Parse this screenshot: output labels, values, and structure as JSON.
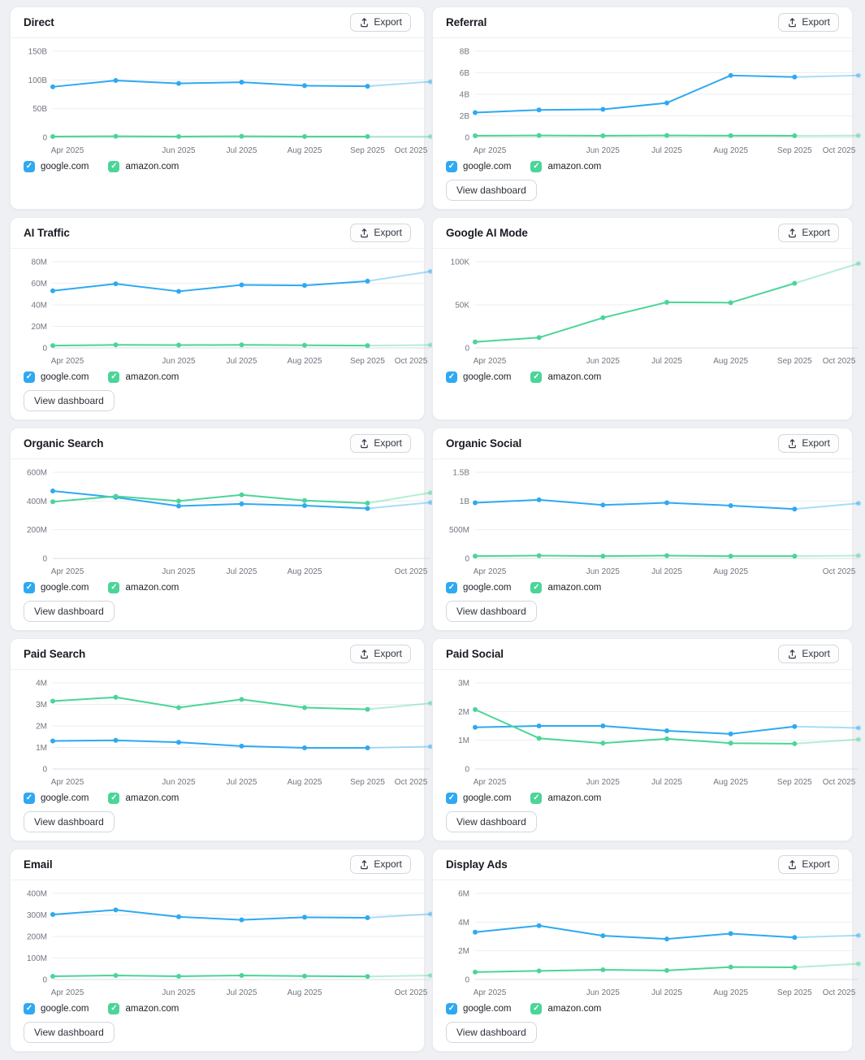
{
  "labels": {
    "export": "Export",
    "view_dashboard": "View dashboard"
  },
  "legend": {
    "items": [
      {
        "label": "google.com",
        "color": "#2ea9f2",
        "checked": true
      },
      {
        "label": "amazon.com",
        "color": "#4bd598",
        "checked": true
      }
    ]
  },
  "colors": {
    "google": "#2ea9f2",
    "amazon": "#4bd598",
    "grid": "#eceef1",
    "axis_zero": "#dadde2",
    "tick_text": "#71767f",
    "estimated_opacity": 0.4
  },
  "cards": [
    {
      "title": "Direct",
      "view_dashboard": false
    },
    {
      "title": "Referral",
      "view_dashboard": true
    },
    {
      "title": "AI Traffic",
      "view_dashboard": true
    },
    {
      "title": "Google AI Mode",
      "view_dashboard": false
    },
    {
      "title": "Organic Search",
      "view_dashboard": true
    },
    {
      "title": "Organic Social",
      "view_dashboard": true
    },
    {
      "title": "Paid Search",
      "view_dashboard": true
    },
    {
      "title": "Paid Social",
      "view_dashboard": true
    },
    {
      "title": "Email",
      "view_dashboard": true
    },
    {
      "title": "Display Ads",
      "view_dashboard": true
    }
  ],
  "chart_data": [
    {
      "type": "line",
      "title": "Direct",
      "unit": "B",
      "ylim": [
        0,
        150
      ],
      "y_ticks": [
        {
          "value": 150,
          "label": "150B"
        },
        {
          "value": 100,
          "label": "100B"
        },
        {
          "value": 50,
          "label": "50B"
        },
        {
          "value": 0,
          "label": "0"
        }
      ],
      "x_tick_labels": [
        {
          "point": 0,
          "label": "Apr 2025"
        },
        {
          "point": 2,
          "label": "Jun 2025"
        },
        {
          "point": 3,
          "label": "Jul 2025"
        },
        {
          "point": 4,
          "label": "Aug 2025"
        },
        {
          "point": 5,
          "label": "Sep 2025"
        },
        {
          "point": 6,
          "label": "Oct 2025"
        }
      ],
      "last_segment_estimated": true,
      "series": [
        {
          "name": "google.com",
          "values": [
            88,
            99,
            94,
            96,
            90,
            89,
            97
          ]
        },
        {
          "name": "amazon.com",
          "values": [
            1.5,
            2,
            1.5,
            2,
            1.5,
            1.5,
            1.5
          ]
        }
      ]
    },
    {
      "type": "line",
      "title": "Referral",
      "unit": "B",
      "ylim": [
        0,
        8
      ],
      "y_ticks": [
        {
          "value": 8,
          "label": "8B"
        },
        {
          "value": 6,
          "label": "6B"
        },
        {
          "value": 4,
          "label": "4B"
        },
        {
          "value": 2,
          "label": "2B"
        },
        {
          "value": 0,
          "label": "0"
        }
      ],
      "x_tick_labels": [
        {
          "point": 0,
          "label": "Apr 2025"
        },
        {
          "point": 2,
          "label": "Jun 2025"
        },
        {
          "point": 3,
          "label": "Jul 2025"
        },
        {
          "point": 4,
          "label": "Aug 2025"
        },
        {
          "point": 5,
          "label": "Sep 2025"
        },
        {
          "point": 6,
          "label": "Oct 2025"
        }
      ],
      "last_segment_estimated": true,
      "series": [
        {
          "name": "google.com",
          "values": [
            2.3,
            2.55,
            2.6,
            3.2,
            5.75,
            5.6,
            5.75
          ]
        },
        {
          "name": "amazon.com",
          "values": [
            0.15,
            0.18,
            0.15,
            0.18,
            0.16,
            0.15,
            0.17
          ]
        }
      ]
    },
    {
      "type": "line",
      "title": "AI Traffic",
      "unit": "M",
      "ylim": [
        0,
        80
      ],
      "y_ticks": [
        {
          "value": 80,
          "label": "80M"
        },
        {
          "value": 60,
          "label": "60M"
        },
        {
          "value": 40,
          "label": "40M"
        },
        {
          "value": 20,
          "label": "20M"
        },
        {
          "value": 0,
          "label": "0"
        }
      ],
      "x_tick_labels": [
        {
          "point": 0,
          "label": "Apr 2025"
        },
        {
          "point": 2,
          "label": "Jun 2025"
        },
        {
          "point": 3,
          "label": "Jul 2025"
        },
        {
          "point": 4,
          "label": "Aug 2025"
        },
        {
          "point": 5,
          "label": "Sep 2025"
        },
        {
          "point": 6,
          "label": "Oct 2025"
        }
      ],
      "last_segment_estimated": true,
      "series": [
        {
          "name": "google.com",
          "values": [
            53,
            59.5,
            52.5,
            58.5,
            58,
            62,
            71
          ]
        },
        {
          "name": "amazon.com",
          "values": [
            2.2,
            2.8,
            2.6,
            2.8,
            2.5,
            2.2,
            2.7
          ]
        }
      ]
    },
    {
      "type": "line",
      "title": "Google AI Mode",
      "unit": "K",
      "ylim": [
        0,
        100
      ],
      "y_ticks": [
        {
          "value": 100,
          "label": "100K"
        },
        {
          "value": 50,
          "label": "50K"
        },
        {
          "value": 0,
          "label": "0"
        }
      ],
      "x_tick_labels": [
        {
          "point": 0,
          "label": "Apr 2025"
        },
        {
          "point": 2,
          "label": "Jun 2025"
        },
        {
          "point": 3,
          "label": "Jul 2025"
        },
        {
          "point": 4,
          "label": "Aug 2025"
        },
        {
          "point": 5,
          "label": "Sep 2025"
        },
        {
          "point": 6,
          "label": "Oct 2025"
        }
      ],
      "last_segment_estimated": true,
      "series": [
        {
          "name": "amazon.com",
          "values": [
            7,
            12,
            35,
            53,
            52.5,
            75,
            98
          ]
        }
      ]
    },
    {
      "type": "line",
      "title": "Organic Search",
      "unit": "M",
      "ylim": [
        0,
        600
      ],
      "y_ticks": [
        {
          "value": 600,
          "label": "600M"
        },
        {
          "value": 400,
          "label": "400M"
        },
        {
          "value": 200,
          "label": "200M"
        },
        {
          "value": 0,
          "label": "0"
        }
      ],
      "x_tick_labels": [
        {
          "point": 0,
          "label": "Apr 2025"
        },
        {
          "point": 2,
          "label": "Jun 2025"
        },
        {
          "point": 3,
          "label": "Jul 2025"
        },
        {
          "point": 4,
          "label": "Aug 2025"
        },
        {
          "point": 6,
          "label": "Oct 2025"
        }
      ],
      "last_segment_estimated": true,
      "series": [
        {
          "name": "google.com",
          "values": [
            470,
            425,
            365,
            380,
            368,
            348,
            390
          ]
        },
        {
          "name": "amazon.com",
          "values": [
            395,
            433,
            400,
            443,
            403,
            385,
            458
          ]
        }
      ]
    },
    {
      "type": "line",
      "title": "Organic Social",
      "unit": "B",
      "ylim": [
        0,
        1.5
      ],
      "y_ticks": [
        {
          "value": 1.5,
          "label": "1.5B"
        },
        {
          "value": 1,
          "label": "1B"
        },
        {
          "value": 0.5,
          "label": "500M"
        },
        {
          "value": 0,
          "label": "0"
        }
      ],
      "x_tick_labels": [
        {
          "point": 0,
          "label": "Apr 2025"
        },
        {
          "point": 2,
          "label": "Jun 2025"
        },
        {
          "point": 3,
          "label": "Jul 2025"
        },
        {
          "point": 4,
          "label": "Aug 2025"
        },
        {
          "point": 6,
          "label": "Oct 2025"
        }
      ],
      "last_segment_estimated": true,
      "series": [
        {
          "name": "google.com",
          "values": [
            0.97,
            1.02,
            0.93,
            0.97,
            0.92,
            0.86,
            0.96
          ]
        },
        {
          "name": "amazon.com",
          "values": [
            0.04,
            0.05,
            0.04,
            0.05,
            0.04,
            0.04,
            0.05
          ]
        }
      ]
    },
    {
      "type": "line",
      "title": "Paid Search",
      "unit": "M",
      "ylim": [
        0,
        4
      ],
      "y_ticks": [
        {
          "value": 4,
          "label": "4M"
        },
        {
          "value": 3,
          "label": "3M"
        },
        {
          "value": 2,
          "label": "2M"
        },
        {
          "value": 1,
          "label": "1M"
        },
        {
          "value": 0,
          "label": "0"
        }
      ],
      "x_tick_labels": [
        {
          "point": 0,
          "label": "Apr 2025"
        },
        {
          "point": 2,
          "label": "Jun 2025"
        },
        {
          "point": 3,
          "label": "Jul 2025"
        },
        {
          "point": 4,
          "label": "Aug 2025"
        },
        {
          "point": 5,
          "label": "Sep 2025"
        },
        {
          "point": 6,
          "label": "Oct 2025"
        }
      ],
      "last_segment_estimated": true,
      "series": [
        {
          "name": "google.com",
          "values": [
            1.3,
            1.33,
            1.24,
            1.06,
            0.98,
            0.98,
            1.04
          ]
        },
        {
          "name": "amazon.com",
          "values": [
            3.15,
            3.33,
            2.85,
            3.23,
            2.85,
            2.77,
            3.05
          ]
        }
      ]
    },
    {
      "type": "line",
      "title": "Paid Social",
      "unit": "M",
      "ylim": [
        0,
        3
      ],
      "y_ticks": [
        {
          "value": 3,
          "label": "3M"
        },
        {
          "value": 2,
          "label": "2M"
        },
        {
          "value": 1,
          "label": "1M"
        },
        {
          "value": 0,
          "label": "0"
        }
      ],
      "x_tick_labels": [
        {
          "point": 0,
          "label": "Apr 2025"
        },
        {
          "point": 2,
          "label": "Jun 2025"
        },
        {
          "point": 3,
          "label": "Jul 2025"
        },
        {
          "point": 4,
          "label": "Aug 2025"
        },
        {
          "point": 5,
          "label": "Sep 2025"
        },
        {
          "point": 6,
          "label": "Oct 2025"
        }
      ],
      "last_segment_estimated": true,
      "series": [
        {
          "name": "google.com",
          "values": [
            1.45,
            1.5,
            1.5,
            1.33,
            1.22,
            1.48,
            1.43
          ]
        },
        {
          "name": "amazon.com",
          "values": [
            2.07,
            1.07,
            0.9,
            1.05,
            0.9,
            0.88,
            1.03
          ]
        }
      ]
    },
    {
      "type": "line",
      "title": "Email",
      "unit": "M",
      "ylim": [
        0,
        400
      ],
      "y_ticks": [
        {
          "value": 400,
          "label": "400M"
        },
        {
          "value": 300,
          "label": "300M"
        },
        {
          "value": 200,
          "label": "200M"
        },
        {
          "value": 100,
          "label": "100M"
        },
        {
          "value": 0,
          "label": "0"
        }
      ],
      "x_tick_labels": [
        {
          "point": 0,
          "label": "Apr 2025"
        },
        {
          "point": 2,
          "label": "Jun 2025"
        },
        {
          "point": 3,
          "label": "Jul 2025"
        },
        {
          "point": 4,
          "label": "Aug 2025"
        },
        {
          "point": 6,
          "label": "Oct 2025"
        }
      ],
      "last_segment_estimated": true,
      "series": [
        {
          "name": "google.com",
          "values": [
            302,
            323,
            291,
            277,
            289,
            287,
            304
          ]
        },
        {
          "name": "amazon.com",
          "values": [
            15,
            19,
            15,
            19,
            16,
            14,
            19
          ]
        }
      ]
    },
    {
      "type": "line",
      "title": "Display Ads",
      "unit": "M",
      "ylim": [
        0,
        6
      ],
      "y_ticks": [
        {
          "value": 6,
          "label": "6M"
        },
        {
          "value": 4,
          "label": "4M"
        },
        {
          "value": 2,
          "label": "2M"
        },
        {
          "value": 0,
          "label": "0"
        }
      ],
      "x_tick_labels": [
        {
          "point": 0,
          "label": "Apr 2025"
        },
        {
          "point": 2,
          "label": "Jun 2025"
        },
        {
          "point": 3,
          "label": "Jul 2025"
        },
        {
          "point": 4,
          "label": "Aug 2025"
        },
        {
          "point": 5,
          "label": "Sep 2025"
        },
        {
          "point": 6,
          "label": "Oct 2025"
        }
      ],
      "last_segment_estimated": true,
      "series": [
        {
          "name": "google.com",
          "values": [
            3.3,
            3.75,
            3.05,
            2.82,
            3.2,
            2.93,
            3.07
          ]
        },
        {
          "name": "amazon.com",
          "values": [
            0.52,
            0.6,
            0.68,
            0.63,
            0.87,
            0.85,
            1.1
          ]
        }
      ]
    }
  ]
}
